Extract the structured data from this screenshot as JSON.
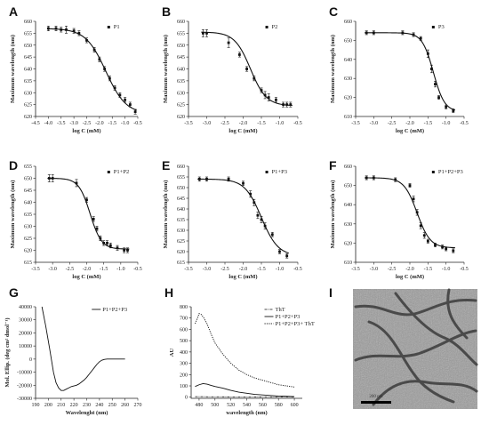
{
  "chart_data": [
    {
      "type": "scatter",
      "panel": "A",
      "xlabel": "log C (mM)",
      "ylabel": "Maximum wavelength (nm)",
      "xlim": [
        -4.5,
        -0.5
      ],
      "ylim": [
        620,
        660
      ],
      "xticks": [
        "-4.5",
        "-4.0",
        "-3.5",
        "-3.0",
        "-2.5",
        "-2.0",
        "-1.5",
        "-1.0",
        "-0.5"
      ],
      "yticks": [
        "620",
        "625",
        "630",
        "635",
        "640",
        "645",
        "650",
        "655",
        "660"
      ],
      "series": [
        {
          "name": "P1",
          "x": [
            -4.0,
            -3.7,
            -3.5,
            -3.3,
            -3.0,
            -2.8,
            -2.5,
            -2.2,
            -2.0,
            -1.8,
            -1.6,
            -1.4,
            -1.2,
            -1.0,
            -0.8,
            -0.6
          ],
          "y": [
            657,
            657,
            656.5,
            656.5,
            656,
            655,
            652,
            648,
            644,
            640,
            636,
            632,
            629,
            627,
            625,
            622
          ],
          "err": [
            1,
            1,
            1,
            1.5,
            1,
            1,
            1,
            1,
            1,
            1,
            1,
            1,
            1,
            1,
            1,
            1
          ]
        }
      ],
      "fit": {
        "top": 657,
        "bottom": 621,
        "x50": -1.75,
        "slope": 1.1
      }
    },
    {
      "type": "scatter",
      "panel": "B",
      "xlabel": "log C (mM)",
      "ylabel": "Maximum wavelength (nm)",
      "xlim": [
        -3.5,
        -0.5
      ],
      "ylim": [
        620,
        660
      ],
      "xticks": [
        "-3.5",
        "-3.0",
        "-2.5",
        "-2.0",
        "-1.5",
        "-1.0",
        "-0.5"
      ],
      "yticks": [
        "620",
        "625",
        "630",
        "635",
        "640",
        "645",
        "650",
        "655",
        "660"
      ],
      "series": [
        {
          "name": "P2",
          "x": [
            -3.1,
            -3.0,
            -2.4,
            -2.1,
            -1.9,
            -1.7,
            -1.5,
            -1.4,
            -1.3,
            -1.1,
            -0.9,
            -0.8,
            -0.7
          ],
          "y": [
            655,
            655,
            651,
            646,
            640,
            636,
            631,
            629,
            628,
            627,
            625,
            625,
            625
          ],
          "err": [
            1.5,
            1.5,
            2,
            1,
            1,
            1,
            1,
            1.5,
            1.5,
            1,
            1,
            1,
            1
          ]
        }
      ],
      "fit": {
        "top": 655.5,
        "bottom": 624.5,
        "x50": -1.8,
        "slope": 2.0
      }
    },
    {
      "type": "scatter",
      "panel": "C",
      "xlabel": "log C (mM)",
      "ylabel": "Maximum wavelength (nm)",
      "xlim": [
        -3.5,
        -0.5
      ],
      "ylim": [
        610,
        660
      ],
      "xticks": [
        "-3.5",
        "-3.0",
        "-2.5",
        "-2.0",
        "-1.5",
        "-1.0",
        "-0.5"
      ],
      "yticks": [
        "610",
        "620",
        "630",
        "640",
        "650",
        "660"
      ],
      "series": [
        {
          "name": "P3",
          "x": [
            -3.2,
            -3.0,
            -2.2,
            -1.9,
            -1.7,
            -1.5,
            -1.4,
            -1.3,
            -1.2,
            -1.0,
            -0.8
          ],
          "y": [
            654,
            654,
            654,
            653,
            651,
            643,
            635,
            627,
            620,
            615,
            613
          ],
          "err": [
            1,
            1,
            1,
            1,
            1,
            2,
            2,
            1.5,
            1,
            1,
            1
          ]
        }
      ],
      "fit": {
        "top": 654,
        "bottom": 612.5,
        "x50": -1.35,
        "slope": 2.8
      }
    },
    {
      "type": "scatter",
      "panel": "D",
      "xlabel": "log C (mM)",
      "ylabel": "Maximum wavelength (nm)",
      "xlim": [
        -3.5,
        -0.5
      ],
      "ylim": [
        615,
        655
      ],
      "xticks": [
        "-3.5",
        "-3.0",
        "-2.5",
        "-2.0",
        "-1.5",
        "-1.0",
        "-0.5"
      ],
      "yticks": [
        "615",
        "620",
        "625",
        "630",
        "635",
        "640",
        "645",
        "650",
        "655"
      ],
      "series": [
        {
          "name": "P1+P2",
          "x": [
            -3.1,
            -3.0,
            -2.3,
            -2.0,
            -1.8,
            -1.7,
            -1.6,
            -1.5,
            -1.4,
            -1.3,
            -1.1,
            -0.9,
            -0.8
          ],
          "y": [
            650,
            650,
            648,
            641,
            633,
            629,
            625,
            623,
            623,
            622,
            621,
            620,
            620
          ],
          "err": [
            1.5,
            1.5,
            1.5,
            1,
            1,
            1,
            1,
            1,
            1,
            1,
            1,
            1,
            1
          ]
        }
      ],
      "fit": {
        "top": 650,
        "bottom": 620.5,
        "x50": -1.9,
        "slope": 2.6
      }
    },
    {
      "type": "scatter",
      "panel": "E",
      "xlabel": "log C (mM)",
      "ylabel": "Maximum wavelength (nm)",
      "xlim": [
        -3.5,
        -0.5
      ],
      "ylim": [
        615,
        660
      ],
      "xticks": [
        "-3.5",
        "-3.0",
        "-2.5",
        "-2.0",
        "-1.5",
        "-1.0",
        "-0.5"
      ],
      "yticks": [
        "615",
        "620",
        "625",
        "630",
        "635",
        "640",
        "645",
        "650",
        "655",
        "660"
      ],
      "series": [
        {
          "name": "P1+P3",
          "x": [
            -3.2,
            -3.0,
            -2.4,
            -2.0,
            -1.8,
            -1.7,
            -1.6,
            -1.5,
            -1.4,
            -1.2,
            -1.0,
            -0.8
          ],
          "y": [
            654,
            654,
            654,
            652,
            647,
            643,
            637,
            635,
            632,
            628,
            620,
            618
          ],
          "err": [
            1,
            1,
            1,
            1,
            1.5,
            1.5,
            1.5,
            1.5,
            1.5,
            1,
            1,
            1
          ]
        }
      ],
      "fit": {
        "top": 654,
        "bottom": 618,
        "x50": -1.5,
        "slope": 1.9
      }
    },
    {
      "type": "scatter",
      "panel": "F",
      "xlabel": "log C (mM)",
      "ylabel": "Maximum wavelength (nm)",
      "xlim": [
        -3.5,
        -0.5
      ],
      "ylim": [
        610,
        660
      ],
      "xticks": [
        "-3.5",
        "-3.0",
        "-2.5",
        "-2.0",
        "-1.5",
        "-1.0",
        "-0.5"
      ],
      "yticks": [
        "610",
        "620",
        "630",
        "640",
        "650",
        "660"
      ],
      "series": [
        {
          "name": "P1+P2+P3",
          "x": [
            -3.2,
            -3.0,
            -2.4,
            -2.0,
            -1.9,
            -1.8,
            -1.7,
            -1.6,
            -1.5,
            -1.3,
            -1.1,
            -1.0,
            -0.8
          ],
          "y": [
            654,
            654,
            653,
            650,
            643,
            636,
            629,
            624,
            621,
            619,
            618,
            617,
            616
          ],
          "err": [
            1,
            1,
            1,
            1,
            1.5,
            1.5,
            1.5,
            1.5,
            1,
            1,
            1,
            1,
            1
          ]
        }
      ],
      "fit": {
        "top": 654,
        "bottom": 617.5,
        "x50": -1.8,
        "slope": 2.4
      }
    },
    {
      "type": "line",
      "panel": "G",
      "xlabel": "Wavelenght (nm)",
      "ylabel": "Mol. Ellip. (deg cm² dmol⁻¹)",
      "xlim": [
        190,
        270
      ],
      "ylim": [
        -30000,
        40000
      ],
      "xticks": [
        "190",
        "200",
        "210",
        "220",
        "230",
        "240",
        "250",
        "260",
        "270"
      ],
      "yticks": [
        "-30000",
        "-20000",
        "-10000",
        "0",
        "10000",
        "20000",
        "30000",
        "40000"
      ],
      "series": [
        {
          "name": "P1+P2+P3",
          "x": [
            195,
            198,
            201,
            204,
            206,
            208,
            210,
            212,
            214,
            216,
            218,
            220,
            222,
            224,
            226,
            228,
            230,
            232,
            234,
            236,
            238,
            240,
            242,
            244,
            246,
            248,
            250,
            255,
            260
          ],
          "y": [
            40000,
            25000,
            8000,
            -10000,
            -18000,
            -22000,
            -24000,
            -24000,
            -23000,
            -22000,
            -21000,
            -20500,
            -20000,
            -19000,
            -17500,
            -16000,
            -14000,
            -11500,
            -9000,
            -6500,
            -4000,
            -2000,
            -800,
            -200,
            0,
            0,
            0,
            0,
            0
          ]
        }
      ]
    },
    {
      "type": "line",
      "panel": "H",
      "xlabel": "wavelength (nm)",
      "ylabel": "AU",
      "xlim": [
        470,
        610
      ],
      "ylim": [
        -10,
        800
      ],
      "xticks": [
        "480",
        "500",
        "520",
        "540",
        "560",
        "580",
        "600"
      ],
      "yticks": [
        "0",
        "100",
        "200",
        "300",
        "400",
        "500",
        "600",
        "700",
        "800"
      ],
      "series": [
        {
          "name": "ThT",
          "x": [
            475,
            480,
            485,
            490,
            495,
            500,
            520,
            540,
            560,
            580,
            600
          ],
          "y": [
            5,
            5,
            5,
            4,
            4,
            4,
            3,
            3,
            2,
            2,
            2
          ]
        },
        {
          "name": "P1+P2+P3",
          "x": [
            475,
            480,
            485,
            490,
            495,
            500,
            510,
            520,
            530,
            540,
            550,
            560,
            570,
            580,
            590,
            600
          ],
          "y": [
            95,
            110,
            120,
            115,
            105,
            95,
            80,
            60,
            45,
            35,
            25,
            20,
            15,
            10,
            8,
            5
          ]
        },
        {
          "name": "P1+P2+P3+ ThT",
          "x": [
            475,
            478,
            480,
            483,
            486,
            490,
            495,
            500,
            510,
            520,
            530,
            540,
            550,
            560,
            570,
            580,
            590,
            600
          ],
          "y": [
            650,
            700,
            740,
            730,
            700,
            650,
            560,
            480,
            380,
            300,
            240,
            200,
            170,
            150,
            130,
            110,
            100,
            90
          ]
        }
      ]
    }
  ],
  "panel_letters": [
    "A",
    "B",
    "C",
    "D",
    "E",
    "F",
    "G",
    "H",
    "I"
  ],
  "image_I": {
    "description": "TEM micrograph of fibrils",
    "scale_bar": "200 nm"
  }
}
